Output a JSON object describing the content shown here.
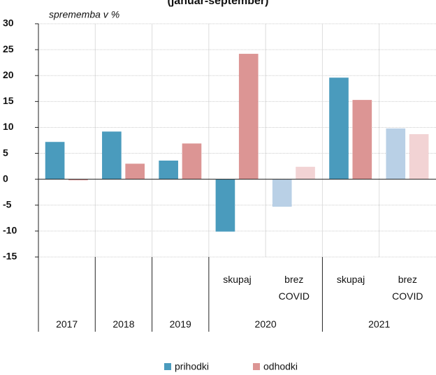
{
  "chart_data": {
    "type": "bar",
    "title": "(januar-september)",
    "y_label": "sprememba v %",
    "categories": [
      [
        "2017",
        null
      ],
      [
        "2018",
        null
      ],
      [
        "2019",
        null
      ],
      [
        "2020",
        "skupaj"
      ],
      [
        "2020",
        "brez COVID"
      ],
      [
        "2021",
        "skupaj"
      ],
      [
        "2021",
        "brez COVID"
      ]
    ],
    "series": [
      {
        "name": "prihodki",
        "color": "#4a9bbd",
        "colors": [
          "#4a9bbd",
          "#4a9bbd",
          "#4a9bbd",
          "#4a9bbd",
          "#b9d0e6",
          "#4a9bbd",
          "#b9d0e6"
        ],
        "values": [
          7.2,
          9.2,
          3.6,
          -10.1,
          -5.3,
          19.6,
          9.8
        ]
      },
      {
        "name": "odhodki",
        "color": "#dc9594",
        "colors": [
          "#dc9594",
          "#dc9594",
          "#dc9594",
          "#dc9594",
          "#f2d3d4",
          "#dc9594",
          "#f2d3d4"
        ],
        "values": [
          -0.2,
          3.0,
          6.9,
          24.2,
          2.4,
          15.3,
          8.7
        ]
      }
    ],
    "ylim": [
      -15,
      30
    ],
    "yticks": [
      -15,
      -10,
      -5,
      0,
      5,
      10,
      15,
      20,
      25,
      30
    ],
    "grid": true,
    "legend": "bottom"
  }
}
